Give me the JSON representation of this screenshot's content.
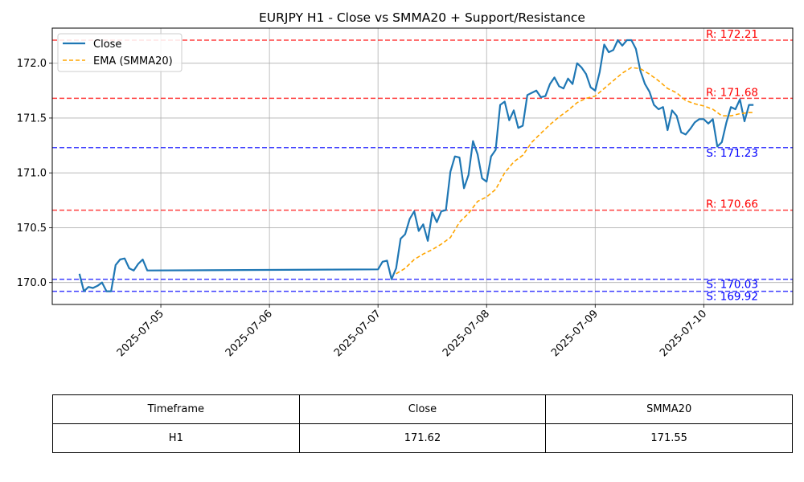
{
  "chart_data": {
    "type": "line",
    "title": "EURJPY H1 - Close vs SMMA20 + Support/Resistance",
    "xlabel": "",
    "ylabel": "",
    "x_range": [
      "2025-07-04T00:00",
      "2025-07-10T19:40"
    ],
    "ylim": [
      169.8,
      172.32
    ],
    "y_ticks": [
      "170.0",
      "170.5",
      "171.0",
      "171.5",
      "172.0"
    ],
    "x_ticks": [
      "2025-07-05",
      "2025-07-06",
      "2025-07-07",
      "2025-07-08",
      "2025-07-09",
      "2025-07-10"
    ],
    "grid": true,
    "legend_position": "top-left",
    "series": [
      {
        "name": "Close",
        "color": "#1f77b4",
        "style": "solid",
        "points": [
          [
            "2025-07-04T06:00",
            170.08
          ],
          [
            "2025-07-04T07:00",
            169.92
          ],
          [
            "2025-07-04T08:00",
            169.96
          ],
          [
            "2025-07-04T09:00",
            169.95
          ],
          [
            "2025-07-04T10:00",
            169.97
          ],
          [
            "2025-07-04T11:00",
            170.0
          ],
          [
            "2025-07-04T12:00",
            169.92
          ],
          [
            "2025-07-04T13:00",
            169.92
          ],
          [
            "2025-07-04T14:00",
            170.16
          ],
          [
            "2025-07-04T15:00",
            170.21
          ],
          [
            "2025-07-04T16:00",
            170.22
          ],
          [
            "2025-07-04T17:00",
            170.13
          ],
          [
            "2025-07-04T18:00",
            170.11
          ],
          [
            "2025-07-04T19:00",
            170.17
          ],
          [
            "2025-07-04T20:00",
            170.21
          ],
          [
            "2025-07-04T21:00",
            170.11
          ],
          [
            "2025-07-07T00:00",
            170.12
          ],
          [
            "2025-07-07T01:00",
            170.19
          ],
          [
            "2025-07-07T02:00",
            170.2
          ],
          [
            "2025-07-07T03:00",
            170.03
          ],
          [
            "2025-07-07T04:00",
            170.13
          ],
          [
            "2025-07-07T05:00",
            170.4
          ],
          [
            "2025-07-07T06:00",
            170.44
          ],
          [
            "2025-07-07T07:00",
            170.58
          ],
          [
            "2025-07-07T08:00",
            170.65
          ],
          [
            "2025-07-07T09:00",
            170.47
          ],
          [
            "2025-07-07T10:00",
            170.53
          ],
          [
            "2025-07-07T11:00",
            170.38
          ],
          [
            "2025-07-07T12:00",
            170.64
          ],
          [
            "2025-07-07T13:00",
            170.55
          ],
          [
            "2025-07-07T14:00",
            170.65
          ],
          [
            "2025-07-07T15:00",
            170.66
          ],
          [
            "2025-07-07T16:00",
            171.01
          ],
          [
            "2025-07-07T17:00",
            171.15
          ],
          [
            "2025-07-07T18:00",
            171.14
          ],
          [
            "2025-07-07T19:00",
            170.86
          ],
          [
            "2025-07-07T20:00",
            170.98
          ],
          [
            "2025-07-07T21:00",
            171.29
          ],
          [
            "2025-07-07T22:00",
            171.17
          ],
          [
            "2025-07-07T23:00",
            170.95
          ],
          [
            "2025-07-08T00:00",
            170.92
          ],
          [
            "2025-07-08T01:00",
            171.15
          ],
          [
            "2025-07-08T02:00",
            171.21
          ],
          [
            "2025-07-08T03:00",
            171.62
          ],
          [
            "2025-07-08T04:00",
            171.65
          ],
          [
            "2025-07-08T05:00",
            171.48
          ],
          [
            "2025-07-08T06:00",
            171.57
          ],
          [
            "2025-07-08T07:00",
            171.41
          ],
          [
            "2025-07-08T08:00",
            171.43
          ],
          [
            "2025-07-08T09:00",
            171.71
          ],
          [
            "2025-07-08T10:00",
            171.73
          ],
          [
            "2025-07-08T11:00",
            171.75
          ],
          [
            "2025-07-08T12:00",
            171.69
          ],
          [
            "2025-07-08T13:00",
            171.7
          ],
          [
            "2025-07-08T14:00",
            171.81
          ],
          [
            "2025-07-08T15:00",
            171.87
          ],
          [
            "2025-07-08T16:00",
            171.79
          ],
          [
            "2025-07-08T17:00",
            171.77
          ],
          [
            "2025-07-08T18:00",
            171.86
          ],
          [
            "2025-07-08T19:00",
            171.81
          ],
          [
            "2025-07-08T20:00",
            172.0
          ],
          [
            "2025-07-08T21:00",
            171.96
          ],
          [
            "2025-07-08T22:00",
            171.9
          ],
          [
            "2025-07-08T23:00",
            171.78
          ],
          [
            "2025-07-09T00:00",
            171.75
          ],
          [
            "2025-07-09T01:00",
            171.92
          ],
          [
            "2025-07-09T02:00",
            172.17
          ],
          [
            "2025-07-09T03:00",
            172.1
          ],
          [
            "2025-07-09T04:00",
            172.12
          ],
          [
            "2025-07-09T05:00",
            172.21
          ],
          [
            "2025-07-09T06:00",
            172.16
          ],
          [
            "2025-07-09T07:00",
            172.21
          ],
          [
            "2025-07-09T08:00",
            172.21
          ],
          [
            "2025-07-09T09:00",
            172.13
          ],
          [
            "2025-07-09T10:00",
            171.93
          ],
          [
            "2025-07-09T11:00",
            171.81
          ],
          [
            "2025-07-09T12:00",
            171.74
          ],
          [
            "2025-07-09T13:00",
            171.62
          ],
          [
            "2025-07-09T14:00",
            171.58
          ],
          [
            "2025-07-09T15:00",
            171.6
          ],
          [
            "2025-07-09T16:00",
            171.39
          ],
          [
            "2025-07-09T17:00",
            171.57
          ],
          [
            "2025-07-09T18:00",
            171.52
          ],
          [
            "2025-07-09T19:00",
            171.37
          ],
          [
            "2025-07-09T20:00",
            171.35
          ],
          [
            "2025-07-09T21:00",
            171.4
          ],
          [
            "2025-07-09T22:00",
            171.46
          ],
          [
            "2025-07-09T23:00",
            171.49
          ],
          [
            "2025-07-10T00:00",
            171.49
          ],
          [
            "2025-07-10T01:00",
            171.45
          ],
          [
            "2025-07-10T02:00",
            171.49
          ],
          [
            "2025-07-10T03:00",
            171.24
          ],
          [
            "2025-07-10T04:00",
            171.28
          ],
          [
            "2025-07-10T05:00",
            171.46
          ],
          [
            "2025-07-10T06:00",
            171.6
          ],
          [
            "2025-07-10T07:00",
            171.58
          ],
          [
            "2025-07-10T08:00",
            171.67
          ],
          [
            "2025-07-10T09:00",
            171.47
          ],
          [
            "2025-07-10T10:00",
            171.62
          ],
          [
            "2025-07-10T11:00",
            171.62
          ]
        ]
      },
      {
        "name": "EMA (SMMA20)",
        "color": "#ffa500",
        "style": "dashed",
        "points": [
          [
            "2025-07-07T04:00",
            170.08
          ],
          [
            "2025-07-07T06:00",
            170.13
          ],
          [
            "2025-07-07T08:00",
            170.21
          ],
          [
            "2025-07-07T10:00",
            170.26
          ],
          [
            "2025-07-07T12:00",
            170.3
          ],
          [
            "2025-07-07T14:00",
            170.35
          ],
          [
            "2025-07-07T16:00",
            170.41
          ],
          [
            "2025-07-07T18:00",
            170.55
          ],
          [
            "2025-07-07T20:00",
            170.63
          ],
          [
            "2025-07-07T22:00",
            170.74
          ],
          [
            "2025-07-08T00:00",
            170.78
          ],
          [
            "2025-07-08T02:00",
            170.85
          ],
          [
            "2025-07-08T04:00",
            171.0
          ],
          [
            "2025-07-08T06:00",
            171.1
          ],
          [
            "2025-07-08T08:00",
            171.16
          ],
          [
            "2025-07-08T10:00",
            171.28
          ],
          [
            "2025-07-08T12:00",
            171.36
          ],
          [
            "2025-07-08T14:00",
            171.44
          ],
          [
            "2025-07-08T16:00",
            171.51
          ],
          [
            "2025-07-08T18:00",
            171.57
          ],
          [
            "2025-07-08T20:00",
            171.64
          ],
          [
            "2025-07-08T22:00",
            171.68
          ],
          [
            "2025-07-09T00:00",
            171.7
          ],
          [
            "2025-07-09T02:00",
            171.77
          ],
          [
            "2025-07-09T04:00",
            171.84
          ],
          [
            "2025-07-09T06:00",
            171.91
          ],
          [
            "2025-07-09T08:00",
            171.96
          ],
          [
            "2025-07-09T10:00",
            171.95
          ],
          [
            "2025-07-09T12:00",
            171.9
          ],
          [
            "2025-07-09T14:00",
            171.84
          ],
          [
            "2025-07-09T16:00",
            171.77
          ],
          [
            "2025-07-09T18:00",
            171.73
          ],
          [
            "2025-07-09T20:00",
            171.66
          ],
          [
            "2025-07-09T22:00",
            171.63
          ],
          [
            "2025-07-10T00:00",
            171.61
          ],
          [
            "2025-07-10T02:00",
            171.58
          ],
          [
            "2025-07-10T04:00",
            171.52
          ],
          [
            "2025-07-10T06:00",
            171.52
          ],
          [
            "2025-07-10T08:00",
            171.54
          ],
          [
            "2025-07-10T10:00",
            171.55
          ],
          [
            "2025-07-10T11:00",
            171.55
          ]
        ]
      }
    ],
    "levels": [
      {
        "type": "resistance",
        "value": 172.21,
        "label": "R: 172.21",
        "color": "#ff0000"
      },
      {
        "type": "resistance",
        "value": 171.68,
        "label": "R: 171.68",
        "color": "#ff0000"
      },
      {
        "type": "support",
        "value": 171.23,
        "label": "S: 171.23",
        "color": "#0000ff"
      },
      {
        "type": "resistance",
        "value": 170.66,
        "label": "R: 170.66",
        "color": "#ff0000"
      },
      {
        "type": "support",
        "value": 170.03,
        "label": "S: 170.03",
        "color": "#0000ff"
      },
      {
        "type": "support",
        "value": 169.92,
        "label": "S: 169.92",
        "color": "#0000ff"
      }
    ]
  },
  "table": {
    "headers": [
      "Timeframe",
      "Close",
      "SMMA20"
    ],
    "rows": [
      [
        "H1",
        "171.62",
        "171.55"
      ]
    ]
  }
}
